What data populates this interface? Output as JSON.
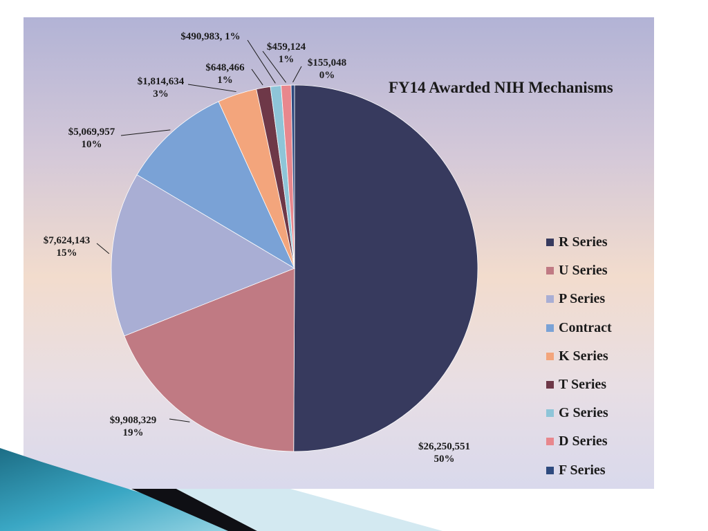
{
  "chart_data": {
    "type": "pie",
    "title": "FY14 Awarded NIH Mechanisms",
    "legend_position": "right",
    "slices": [
      {
        "name": "R Series",
        "value": 26250551,
        "percent": "50%",
        "value_label": "$26,250,551",
        "color": "#373a5e"
      },
      {
        "name": "U Series",
        "value": 9908329,
        "percent": "19%",
        "value_label": "$9,908,329",
        "color": "#c07a83"
      },
      {
        "name": "P Series",
        "value": 7624143,
        "percent": "15%",
        "value_label": "$7,624,143",
        "color": "#a9aed4"
      },
      {
        "name": "Contract",
        "value": 5069957,
        "percent": "10%",
        "value_label": "$5,069,957",
        "color": "#7aa2d6"
      },
      {
        "name": "K Series",
        "value": 1814634,
        "percent": "3%",
        "value_label": "$1,814,634",
        "color": "#f3a57c"
      },
      {
        "name": "T Series",
        "value": 648466,
        "percent": "1%",
        "value_label": "$648,466",
        "color": "#6e3848"
      },
      {
        "name": "G Series",
        "value": 490983,
        "percent": "1%",
        "value_label": "$490,983,",
        "color": "#8ec5d8"
      },
      {
        "name": "D Series",
        "value": 459124,
        "percent": "1%",
        "value_label": "$459,124",
        "color": "#e8878d"
      },
      {
        "name": "F Series",
        "value": 155048,
        "percent": "0%",
        "value_label": "$155,048",
        "color": "#2e4a7e"
      }
    ]
  }
}
